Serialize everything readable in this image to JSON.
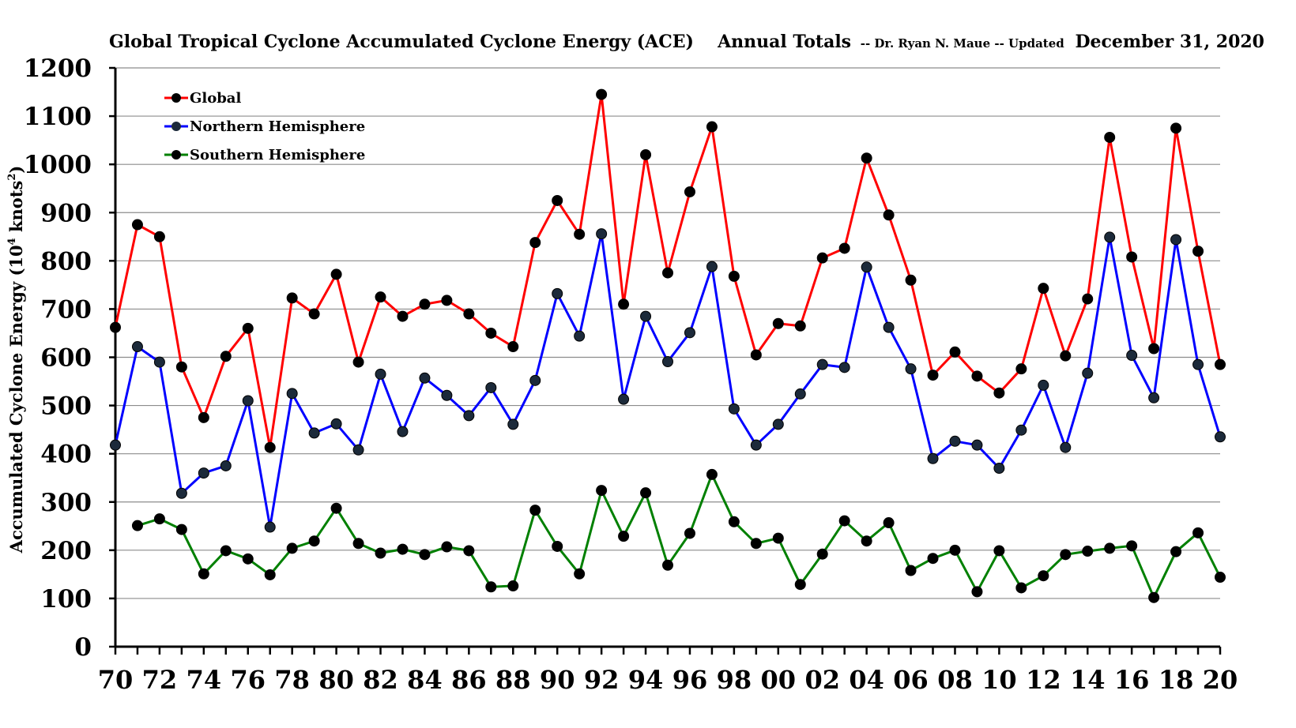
{
  "header": {
    "title": "Global Tropical Cyclone Accumulated Cyclone Energy (ACE)",
    "subtitle_prefix": "Annual Totals",
    "subtitle_author": "-- Dr. Ryan N. Maue -- Updated",
    "subtitle_date": "December 31, 2020"
  },
  "chart_data": {
    "type": "line",
    "title": "Global Tropical Cyclone Accumulated Cyclone Energy (ACE)",
    "ylabel_main": "Accumulated Cyclone Energy (10",
    "ylabel_sup": "4",
    "ylabel_unit": " knots",
    "ylabel_sup2": "2",
    "ylabel_end": ")",
    "ylim": [
      0,
      1200
    ],
    "yticks": [
      0,
      100,
      200,
      300,
      400,
      500,
      600,
      700,
      800,
      900,
      1000,
      1100,
      1200
    ],
    "xlim": [
      1970,
      2020
    ],
    "xtick_labels": [
      "70",
      "72",
      "74",
      "76",
      "78",
      "80",
      "82",
      "84",
      "86",
      "88",
      "90",
      "92",
      "94",
      "96",
      "98",
      "00",
      "02",
      "04",
      "06",
      "08",
      "10",
      "12",
      "14",
      "16",
      "18",
      "20"
    ],
    "grid": "horizontal",
    "legend_position": "top-left",
    "series": [
      {
        "name": "Global",
        "color": "#ff0000",
        "x": [
          1970,
          1971,
          1972,
          1973,
          1974,
          1975,
          1976,
          1977,
          1978,
          1979,
          1980,
          1981,
          1982,
          1983,
          1984,
          1985,
          1986,
          1987,
          1988,
          1989,
          1990,
          1991,
          1992,
          1993,
          1994,
          1995,
          1996,
          1997,
          1998,
          1999,
          2000,
          2001,
          2002,
          2003,
          2004,
          2005,
          2006,
          2007,
          2008,
          2009,
          2010,
          2011,
          2012,
          2013,
          2014,
          2015,
          2016,
          2017,
          2018,
          2019,
          2020
        ],
        "values": [
          662,
          875,
          850,
          580,
          475,
          602,
          660,
          413,
          723,
          690,
          772,
          590,
          725,
          685,
          710,
          718,
          690,
          650,
          622,
          838,
          925,
          855,
          1145,
          710,
          1020,
          775,
          943,
          1078,
          768,
          605,
          670,
          665,
          806,
          826,
          1013,
          895,
          760,
          563,
          611,
          561,
          526,
          576,
          743,
          603,
          721,
          1056,
          808,
          618,
          1075,
          820,
          585
        ]
      },
      {
        "name": "Northern Hemisphere",
        "color": "#0000ff",
        "x": [
          1970,
          1971,
          1972,
          1973,
          1974,
          1975,
          1976,
          1977,
          1978,
          1979,
          1980,
          1981,
          1982,
          1983,
          1984,
          1985,
          1986,
          1987,
          1988,
          1989,
          1990,
          1991,
          1992,
          1993,
          1994,
          1995,
          1996,
          1997,
          1998,
          1999,
          2000,
          2001,
          2002,
          2003,
          2004,
          2005,
          2006,
          2007,
          2008,
          2009,
          2010,
          2011,
          2012,
          2013,
          2014,
          2015,
          2016,
          2017,
          2018,
          2019,
          2020
        ],
        "values": [
          418,
          622,
          590,
          318,
          360,
          375,
          510,
          248,
          525,
          443,
          462,
          408,
          565,
          446,
          557,
          521,
          479,
          537,
          461,
          552,
          732,
          644,
          856,
          513,
          685,
          591,
          651,
          788,
          493,
          418,
          461,
          524,
          585,
          579,
          787,
          662,
          576,
          390,
          426,
          418,
          370,
          449,
          542,
          413,
          567,
          849,
          604,
          516,
          844,
          585,
          435
        ]
      },
      {
        "name": "Southern Hemisphere",
        "color": "#008000",
        "x": [
          1971,
          1972,
          1973,
          1974,
          1975,
          1976,
          1977,
          1978,
          1979,
          1980,
          1981,
          1982,
          1983,
          1984,
          1985,
          1986,
          1987,
          1988,
          1989,
          1990,
          1991,
          1992,
          1993,
          1994,
          1995,
          1996,
          1997,
          1998,
          1999,
          2000,
          2001,
          2002,
          2003,
          2004,
          2005,
          2006,
          2007,
          2008,
          2009,
          2010,
          2011,
          2012,
          2013,
          2014,
          2015,
          2016,
          2017,
          2018,
          2019,
          2020
        ],
        "values": [
          251,
          265,
          243,
          151,
          199,
          182,
          149,
          204,
          219,
          287,
          214,
          194,
          202,
          191,
          207,
          199,
          124,
          126,
          283,
          208,
          151,
          324,
          229,
          319,
          169,
          235,
          357,
          259,
          214,
          225,
          129,
          192,
          261,
          219,
          257,
          158,
          183,
          200,
          114,
          199,
          122,
          147,
          191,
          198,
          204,
          209,
          102,
          197,
          236,
          144
        ]
      }
    ]
  }
}
